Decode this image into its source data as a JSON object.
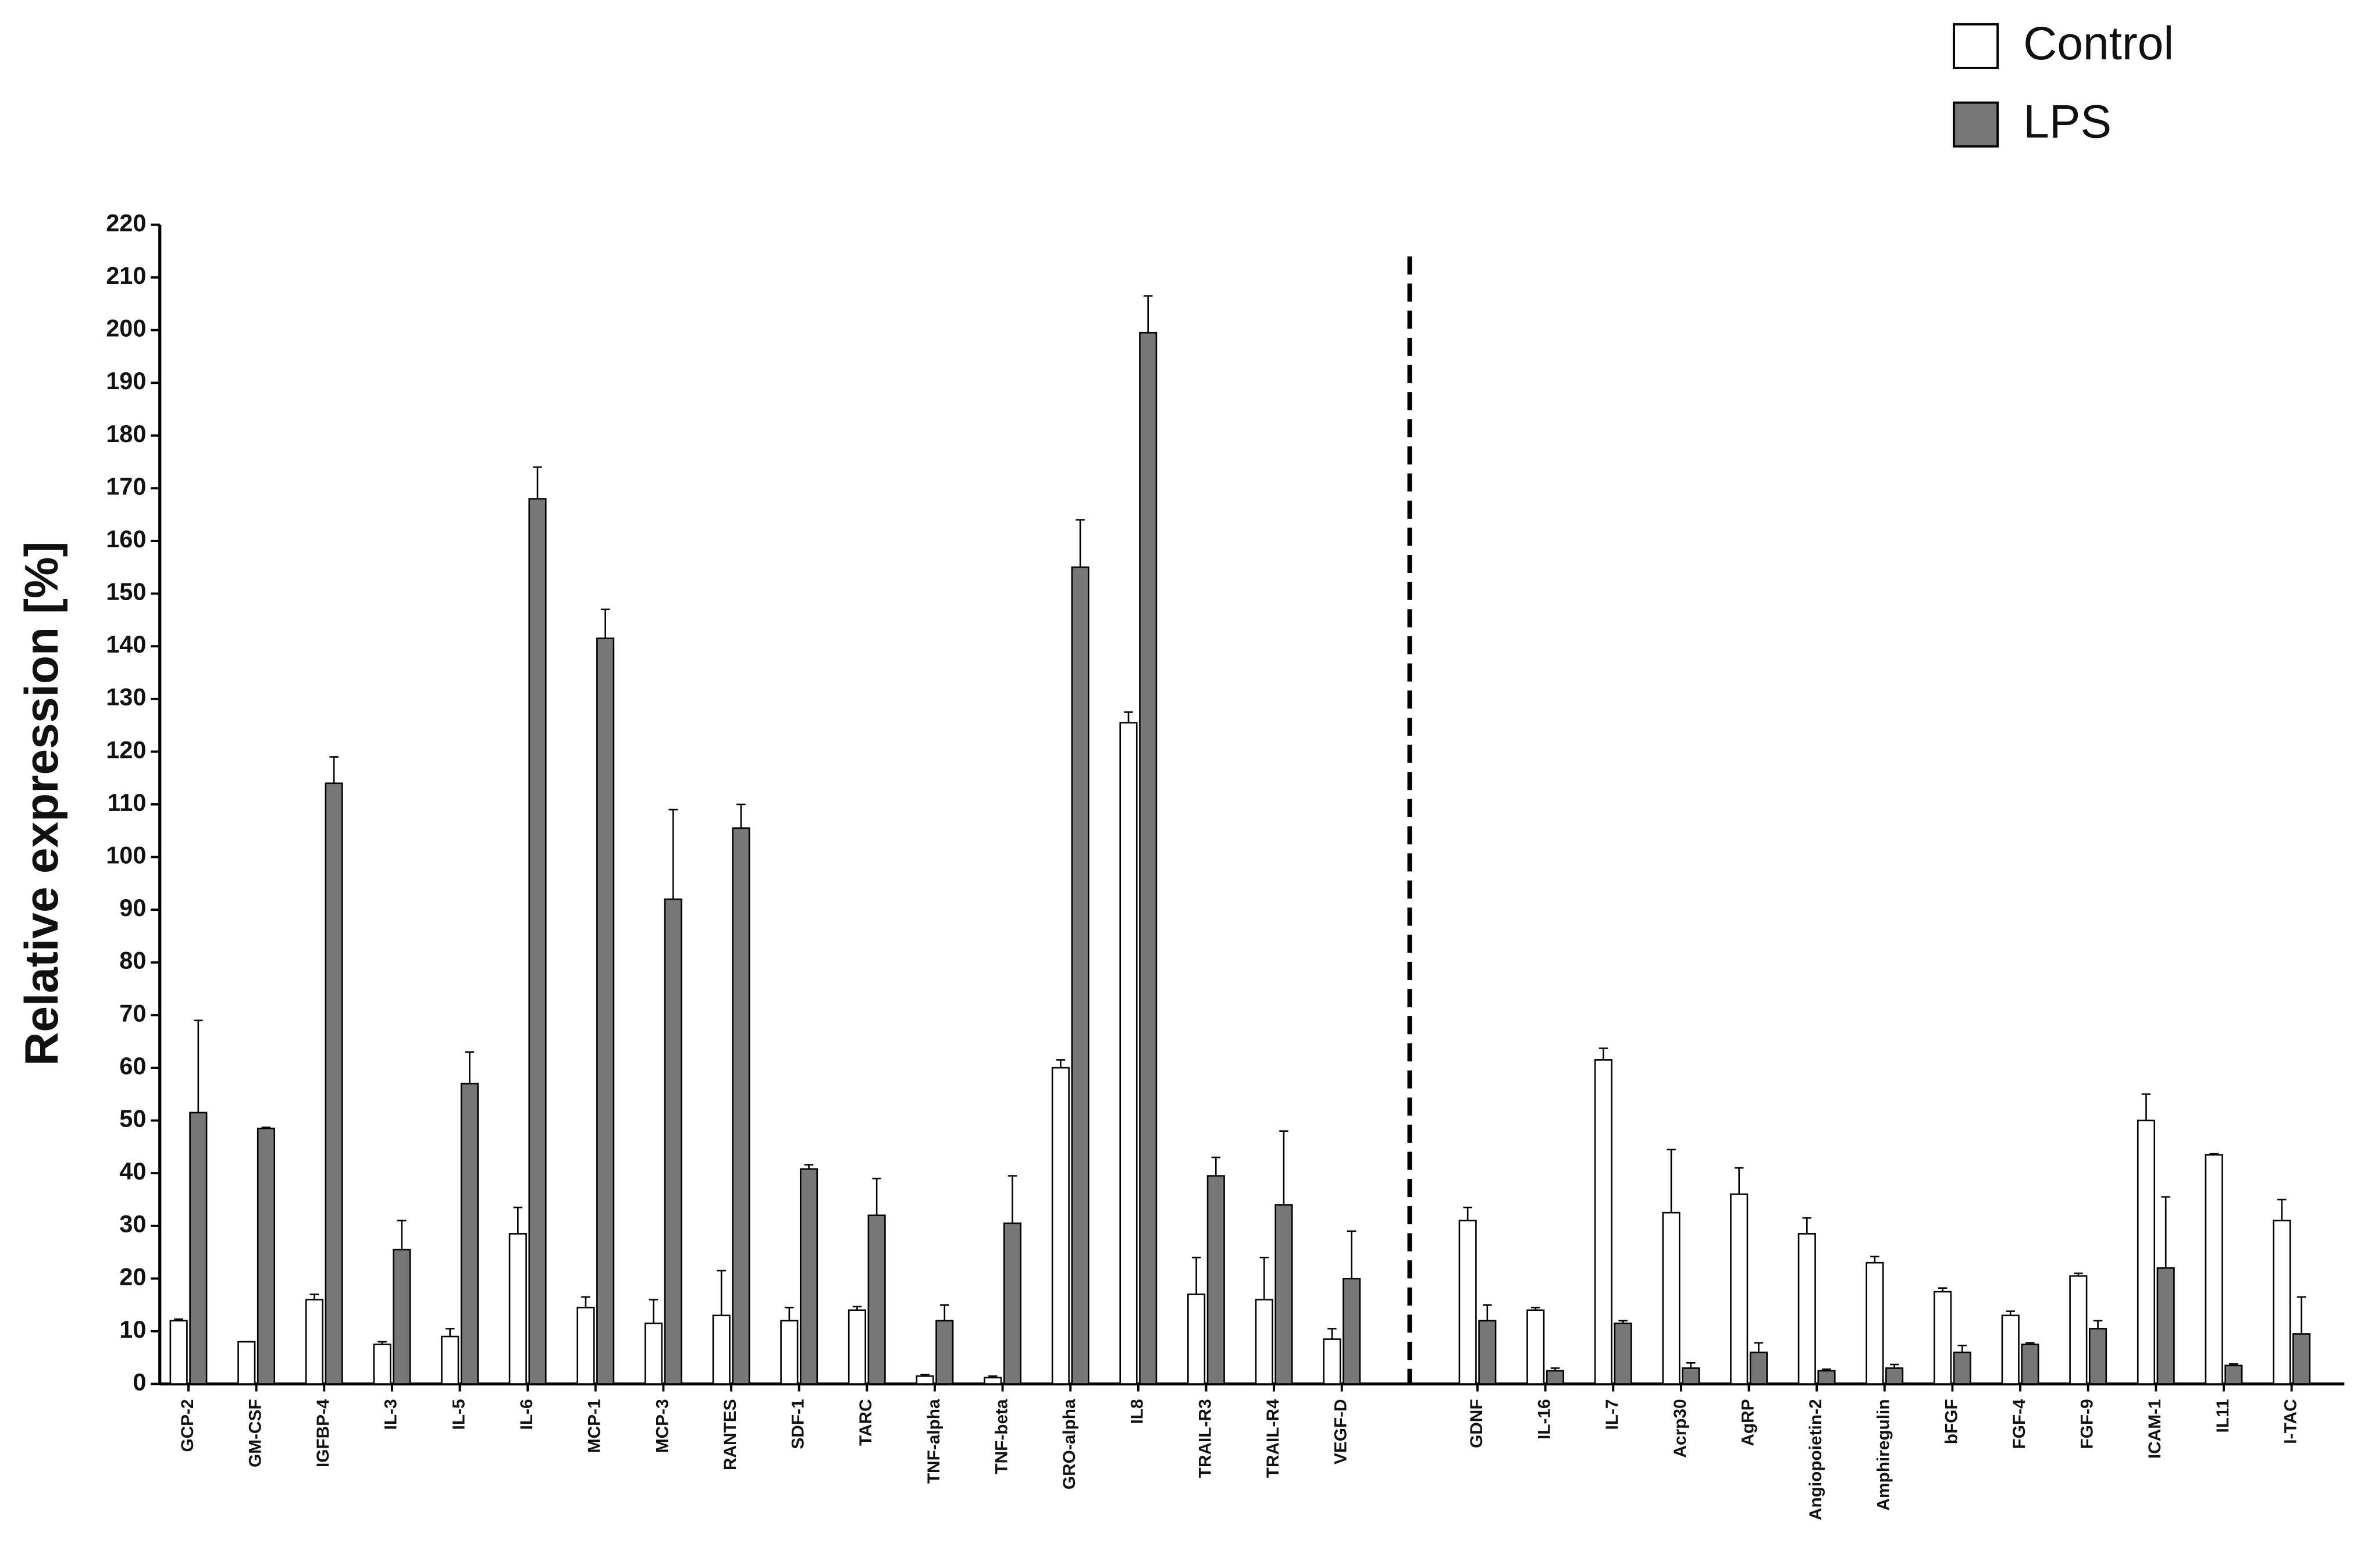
{
  "chart_data": {
    "type": "bar",
    "ylabel": "Relative expression [%]",
    "categories": [
      "GCP-2",
      "GM-CSF",
      "IGFBP-4",
      "IL-3",
      "IL-5",
      "IL-6",
      "MCP-1",
      "MCP-3",
      "RANTES",
      "SDF-1",
      "TARC",
      "TNF-alpha",
      "TNF-beta",
      "GRO-alpha",
      "IL8",
      "TRAIL-R3",
      "TRAIL-R4",
      "VEGF-D",
      "GDNF",
      "IL-16",
      "IL-7",
      "Acrp30",
      "AgRP",
      "Angiopoietin-2",
      "Amphiregulin",
      "bFGF",
      "FGF-4",
      "FGF-9",
      "ICAM-1",
      "IL11",
      "I-TAC"
    ],
    "series": [
      {
        "name": "Control",
        "color": "#ffffff",
        "values": [
          12,
          8,
          16,
          7.5,
          9,
          28.5,
          14.5,
          11.5,
          13,
          12,
          14,
          1.5,
          1.2,
          60,
          125.5,
          17,
          16,
          8.5,
          31,
          14,
          61.5,
          32.5,
          36,
          28.5,
          23,
          17.5,
          13,
          20.5,
          50,
          43.5,
          31
        ],
        "errors": [
          0.3,
          0,
          1,
          0.5,
          1.5,
          5,
          2,
          4.5,
          8.5,
          2.5,
          0.7,
          0.3,
          0.3,
          1.5,
          2,
          7,
          8,
          2,
          2.5,
          0.5,
          2.2,
          12,
          5,
          3,
          1.2,
          0.7,
          0.8,
          0.5,
          5,
          0.2,
          4
        ]
      },
      {
        "name": "LPS",
        "color": "#777777",
        "values": [
          51.5,
          48.5,
          114,
          25.5,
          57,
          168,
          141.5,
          92,
          105.5,
          40.8,
          32,
          12,
          30.5,
          155,
          199.5,
          39.5,
          34,
          20,
          12,
          2.5,
          11.5,
          3,
          6,
          2.5,
          3,
          6,
          7.5,
          10.5,
          22,
          3.5,
          9.5
        ],
        "errors": [
          17.5,
          0.2,
          5,
          5.5,
          6,
          6,
          5.5,
          17,
          4.5,
          0.8,
          7,
          3,
          9,
          9,
          7,
          3.5,
          14,
          9,
          3,
          0.5,
          0.5,
          1,
          1.8,
          0.3,
          0.7,
          1.3,
          0.3,
          1.5,
          13.5,
          0.3,
          7
        ]
      }
    ],
    "ylim": [
      0,
      220
    ],
    "yticks": [
      0,
      10,
      20,
      30,
      40,
      50,
      60,
      70,
      80,
      90,
      100,
      110,
      120,
      130,
      140,
      150,
      160,
      170,
      180,
      190,
      200,
      210,
      220
    ],
    "divider_after": 18,
    "legend": "top-right",
    "grid": false
  }
}
